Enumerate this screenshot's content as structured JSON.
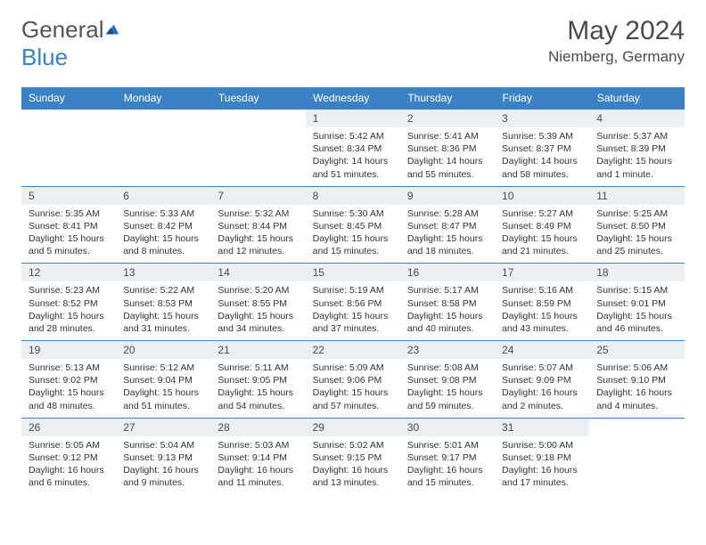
{
  "logo": {
    "text1": "General",
    "text2": "Blue"
  },
  "title": "May 2024",
  "location": "Niemberg, Germany",
  "colors": {
    "header_bg": "#3b82c4",
    "header_text": "#ffffff",
    "daynum_bg": "#eceff1",
    "border": "#3b82c4",
    "text": "#333333",
    "title_text": "#4a4a4a"
  },
  "day_headers": [
    "Sunday",
    "Monday",
    "Tuesday",
    "Wednesday",
    "Thursday",
    "Friday",
    "Saturday"
  ],
  "weeks": [
    [
      null,
      null,
      null,
      {
        "n": "1",
        "sr": "5:42 AM",
        "ss": "8:34 PM",
        "dl": "14 hours and 51 minutes."
      },
      {
        "n": "2",
        "sr": "5:41 AM",
        "ss": "8:36 PM",
        "dl": "14 hours and 55 minutes."
      },
      {
        "n": "3",
        "sr": "5:39 AM",
        "ss": "8:37 PM",
        "dl": "14 hours and 58 minutes."
      },
      {
        "n": "4",
        "sr": "5:37 AM",
        "ss": "8:39 PM",
        "dl": "15 hours and 1 minute."
      }
    ],
    [
      {
        "n": "5",
        "sr": "5:35 AM",
        "ss": "8:41 PM",
        "dl": "15 hours and 5 minutes."
      },
      {
        "n": "6",
        "sr": "5:33 AM",
        "ss": "8:42 PM",
        "dl": "15 hours and 8 minutes."
      },
      {
        "n": "7",
        "sr": "5:32 AM",
        "ss": "8:44 PM",
        "dl": "15 hours and 12 minutes."
      },
      {
        "n": "8",
        "sr": "5:30 AM",
        "ss": "8:45 PM",
        "dl": "15 hours and 15 minutes."
      },
      {
        "n": "9",
        "sr": "5:28 AM",
        "ss": "8:47 PM",
        "dl": "15 hours and 18 minutes."
      },
      {
        "n": "10",
        "sr": "5:27 AM",
        "ss": "8:49 PM",
        "dl": "15 hours and 21 minutes."
      },
      {
        "n": "11",
        "sr": "5:25 AM",
        "ss": "8:50 PM",
        "dl": "15 hours and 25 minutes."
      }
    ],
    [
      {
        "n": "12",
        "sr": "5:23 AM",
        "ss": "8:52 PM",
        "dl": "15 hours and 28 minutes."
      },
      {
        "n": "13",
        "sr": "5:22 AM",
        "ss": "8:53 PM",
        "dl": "15 hours and 31 minutes."
      },
      {
        "n": "14",
        "sr": "5:20 AM",
        "ss": "8:55 PM",
        "dl": "15 hours and 34 minutes."
      },
      {
        "n": "15",
        "sr": "5:19 AM",
        "ss": "8:56 PM",
        "dl": "15 hours and 37 minutes."
      },
      {
        "n": "16",
        "sr": "5:17 AM",
        "ss": "8:58 PM",
        "dl": "15 hours and 40 minutes."
      },
      {
        "n": "17",
        "sr": "5:16 AM",
        "ss": "8:59 PM",
        "dl": "15 hours and 43 minutes."
      },
      {
        "n": "18",
        "sr": "5:15 AM",
        "ss": "9:01 PM",
        "dl": "15 hours and 46 minutes."
      }
    ],
    [
      {
        "n": "19",
        "sr": "5:13 AM",
        "ss": "9:02 PM",
        "dl": "15 hours and 48 minutes."
      },
      {
        "n": "20",
        "sr": "5:12 AM",
        "ss": "9:04 PM",
        "dl": "15 hours and 51 minutes."
      },
      {
        "n": "21",
        "sr": "5:11 AM",
        "ss": "9:05 PM",
        "dl": "15 hours and 54 minutes."
      },
      {
        "n": "22",
        "sr": "5:09 AM",
        "ss": "9:06 PM",
        "dl": "15 hours and 57 minutes."
      },
      {
        "n": "23",
        "sr": "5:08 AM",
        "ss": "9:08 PM",
        "dl": "15 hours and 59 minutes."
      },
      {
        "n": "24",
        "sr": "5:07 AM",
        "ss": "9:09 PM",
        "dl": "16 hours and 2 minutes."
      },
      {
        "n": "25",
        "sr": "5:06 AM",
        "ss": "9:10 PM",
        "dl": "16 hours and 4 minutes."
      }
    ],
    [
      {
        "n": "26",
        "sr": "5:05 AM",
        "ss": "9:12 PM",
        "dl": "16 hours and 6 minutes."
      },
      {
        "n": "27",
        "sr": "5:04 AM",
        "ss": "9:13 PM",
        "dl": "16 hours and 9 minutes."
      },
      {
        "n": "28",
        "sr": "5:03 AM",
        "ss": "9:14 PM",
        "dl": "16 hours and 11 minutes."
      },
      {
        "n": "29",
        "sr": "5:02 AM",
        "ss": "9:15 PM",
        "dl": "16 hours and 13 minutes."
      },
      {
        "n": "30",
        "sr": "5:01 AM",
        "ss": "9:17 PM",
        "dl": "16 hours and 15 minutes."
      },
      {
        "n": "31",
        "sr": "5:00 AM",
        "ss": "9:18 PM",
        "dl": "16 hours and 17 minutes."
      },
      null
    ]
  ],
  "labels": {
    "sunrise": "Sunrise: ",
    "sunset": "Sunset: ",
    "daylight": "Daylight: "
  }
}
